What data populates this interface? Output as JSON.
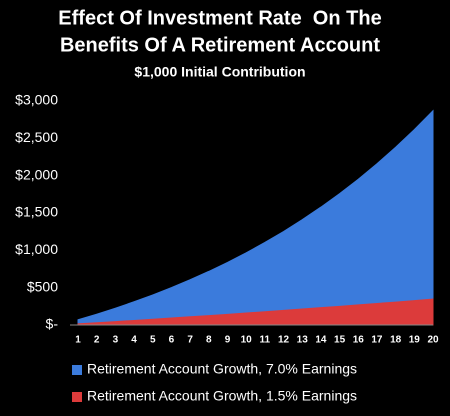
{
  "chart_data": {
    "type": "area",
    "title": [
      "Effect Of Investment Rate  On The",
      "Benefits Of A Retirement Account"
    ],
    "subtitle": "$1,000 Initial Contribution",
    "categories": [
      "1",
      "2",
      "3",
      "4",
      "5",
      "6",
      "7",
      "8",
      "9",
      "10",
      "11",
      "12",
      "13",
      "14",
      "15",
      "16",
      "17",
      "18",
      "19",
      "20"
    ],
    "series": [
      {
        "name": "Retirement Account Growth, 7.0% Earnings",
        "color": "#3b7bdc",
        "values": [
          70,
          145,
          225,
          311,
          403,
          501,
          606,
          718,
          838,
          967,
          1105,
          1252,
          1410,
          1579,
          1759,
          1952,
          2159,
          2380,
          2617,
          2870
        ]
      },
      {
        "name": "Retirement Account Growth, 1.5% Earnings",
        "color": "#dc3b3b",
        "values": [
          15,
          30,
          46,
          61,
          77,
          93,
          110,
          126,
          143,
          161,
          178,
          196,
          214,
          232,
          250,
          269,
          288,
          307,
          327,
          347
        ]
      }
    ],
    "ylim": [
      0,
      3000
    ],
    "yticks": [
      {
        "value": 0,
        "label": "$-"
      },
      {
        "value": 500,
        "label": "$500"
      },
      {
        "value": 1000,
        "label": "$1,000"
      },
      {
        "value": 1500,
        "label": "$1,500"
      },
      {
        "value": 2000,
        "label": "$2,000"
      },
      {
        "value": 2500,
        "label": "$2,500"
      },
      {
        "value": 3000,
        "label": "$3,000"
      }
    ],
    "grid": false,
    "legend": "bottom"
  }
}
